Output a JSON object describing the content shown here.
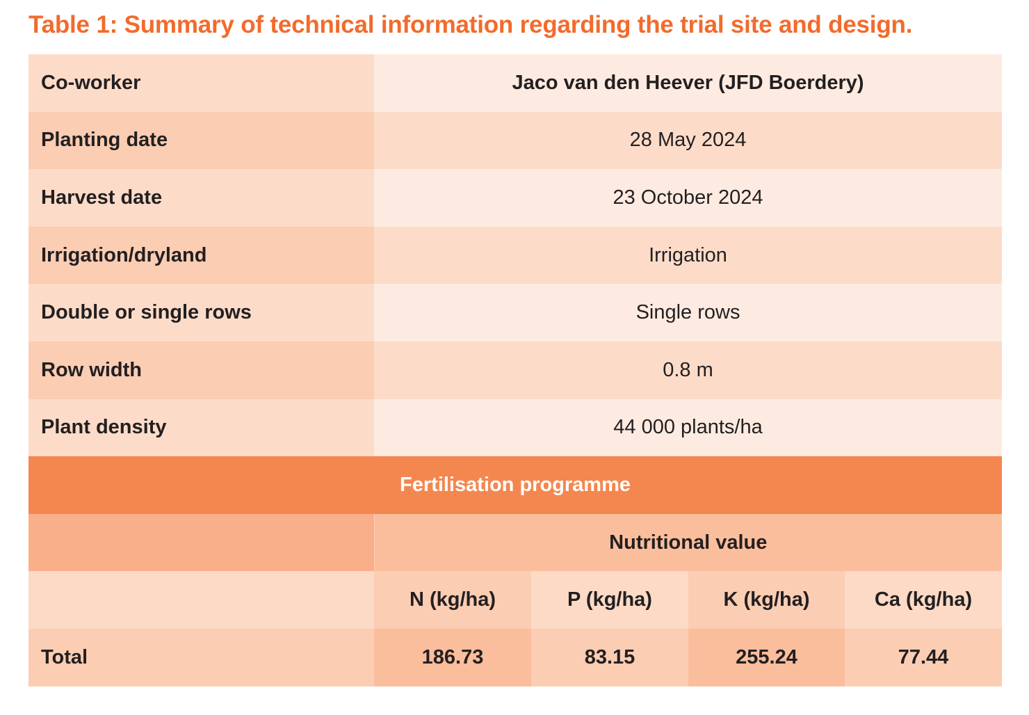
{
  "title": "Table 1: Summary of technical information regarding the trial site and design.",
  "rows": [
    {
      "label": "Co-worker",
      "value": "Jaco van den Heever (JFD Boerdery)"
    },
    {
      "label": "Planting date",
      "value": "28 May 2024"
    },
    {
      "label": "Harvest date",
      "value": "23 October 2024"
    },
    {
      "label": "Irrigation/dryland",
      "value": "Irrigation"
    },
    {
      "label": "Double or single rows",
      "value": "Single rows"
    },
    {
      "label": "Row width",
      "value": "0.8 m"
    },
    {
      "label": "Plant density",
      "value": "44 000 plants/ha"
    }
  ],
  "fertilisation": {
    "heading": "Fertilisation programme",
    "subheading": "Nutritional value",
    "columns": [
      "N (kg/ha)",
      "P (kg/ha)",
      "K (kg/ha)",
      "Ca (kg/ha)"
    ],
    "total_label": "Total",
    "totals": [
      "186.73",
      "83.15",
      "255.24",
      "77.44"
    ]
  },
  "colors": {
    "accent": "#F26B2C",
    "header": "#F4874F"
  }
}
